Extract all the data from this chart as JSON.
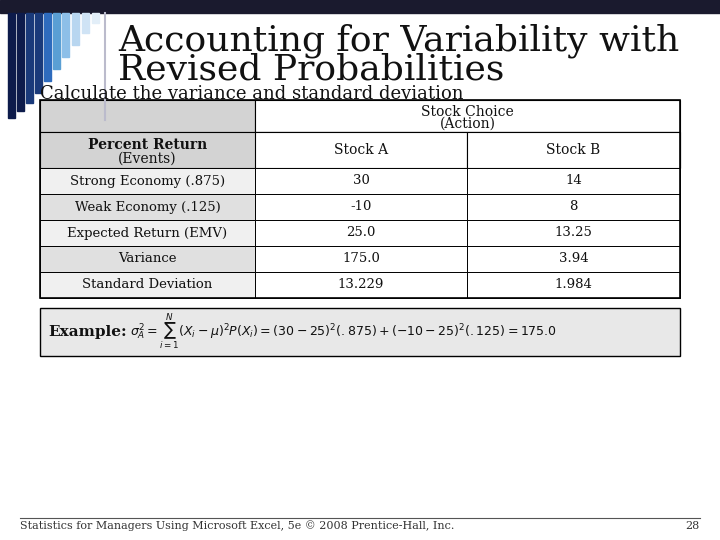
{
  "title_line1": "Accounting for Variability with",
  "title_line2": "Revised Probabilities",
  "subtitle": "Calculate the variance and standard deviation",
  "bg_color": "#ffffff",
  "header_bg": "#d3d3d3",
  "header_right_bg": "#ffffff",
  "row_bg_odd": "#e0e0e0",
  "row_bg_even": "#f0f0f0",
  "rows": [
    [
      "Strong Economy (.875)",
      "30",
      "14"
    ],
    [
      "Weak Economy (.125)",
      "-10",
      "8"
    ],
    [
      "Expected Return (EMV)",
      "25.0",
      "13.25"
    ],
    [
      "Variance",
      "175.0",
      "3.94"
    ],
    [
      "Standard Deviation",
      "13.229",
      "1.984"
    ]
  ],
  "footer": "Statistics for Managers Using Microsoft Excel, 5e © 2008 Prentice-Hall, Inc.",
  "page_num": "28",
  "title_font_size": 26,
  "subtitle_font_size": 13,
  "footer_font_size": 8,
  "accent_bar_colors": [
    "#0d1b4b",
    "#0d1b4b",
    "#1a3a7a",
    "#1a3a7a",
    "#2e6bbd",
    "#5a9fd4",
    "#8dbfe8",
    "#b8d6f0",
    "#cfe3f5",
    "#e2eef8"
  ],
  "top_bar_color": "#1a1a2e",
  "example_bg": "#e8e8e8"
}
